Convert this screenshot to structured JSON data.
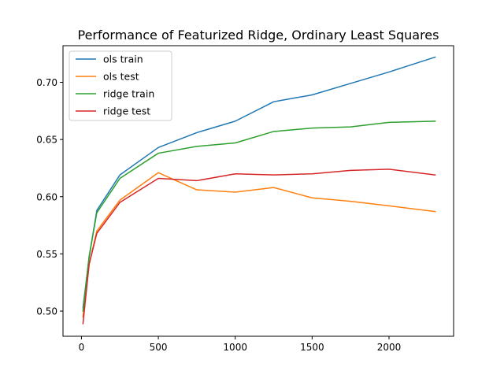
{
  "chart_data": {
    "type": "line",
    "title": "Performance of Featurized Ridge, Ordinary Least Squares",
    "xlabel": "",
    "ylabel": "",
    "xlim": [
      -120,
      2420
    ],
    "ylim": [
      0.478,
      0.732
    ],
    "xticks": [
      0,
      500,
      1000,
      1500,
      2000
    ],
    "xtick_labels": [
      "0",
      "500",
      "1000",
      "1500",
      "2000"
    ],
    "yticks": [
      0.5,
      0.55,
      0.6,
      0.65,
      0.7
    ],
    "ytick_labels": [
      "0.50",
      "0.55",
      "0.60",
      "0.65",
      "0.70"
    ],
    "grid": false,
    "legend_position": "top-left",
    "x": [
      10,
      50,
      100,
      250,
      500,
      750,
      1000,
      1250,
      1500,
      1750,
      2000,
      2300
    ],
    "series": [
      {
        "name": "ols train",
        "color": "#1f77b4",
        "values": [
          0.503,
          0.547,
          0.588,
          0.619,
          0.643,
          0.656,
          0.666,
          0.683,
          0.689,
          0.699,
          0.709,
          0.722
        ]
      },
      {
        "name": "ols test",
        "color": "#ff7f0e",
        "values": [
          0.495,
          0.541,
          0.57,
          0.597,
          0.621,
          0.606,
          0.604,
          0.608,
          0.599,
          0.596,
          0.592,
          0.587
        ]
      },
      {
        "name": "ridge train",
        "color": "#2ca02c",
        "values": [
          0.5,
          0.548,
          0.586,
          0.616,
          0.638,
          0.644,
          0.647,
          0.657,
          0.66,
          0.661,
          0.665,
          0.666
        ]
      },
      {
        "name": "ridge test",
        "color": "#d62728",
        "values": [
          0.489,
          0.541,
          0.568,
          0.595,
          0.616,
          0.614,
          0.62,
          0.619,
          0.62,
          0.623,
          0.624,
          0.619
        ]
      }
    ]
  }
}
